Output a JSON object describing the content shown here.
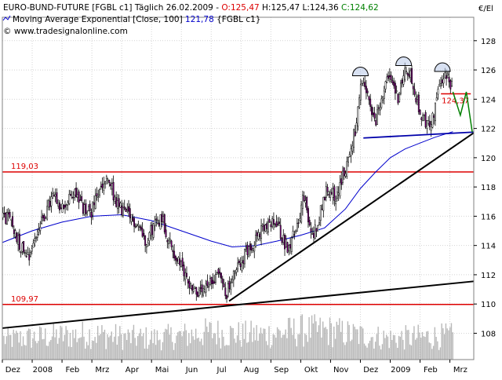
{
  "header": {
    "title_line": {
      "prefix": "EURO-BUND-FUTURE [FGBL c1]  Täglich 26.02.2009 - ",
      "o_label": "O:125,47",
      "h_label": " H:125,47",
      "l_label": " L:124,36",
      "c_label": " C:124,62"
    },
    "ma_line": {
      "prefix": "Moving Average Exponential [Close, 100] ",
      "value": "121,78",
      "suffix": " {FGBL c1}"
    },
    "copyright": "© www.tradesignalonline.com"
  },
  "chart_data": {
    "type": "candlestick",
    "y_axis_unit": "€/El",
    "ylim": [
      106.2,
      129.6
    ],
    "y_ticks": [
      {
        "value": 108,
        "label": "108"
      },
      {
        "value": 110,
        "label": "110"
      },
      {
        "value": 112,
        "label": "112"
      },
      {
        "value": 114,
        "label": "114"
      },
      {
        "value": 116,
        "label": "116"
      },
      {
        "value": 118,
        "label": "118"
      },
      {
        "value": 120,
        "label": "120"
      },
      {
        "value": 122,
        "label": "122"
      },
      {
        "value": 124,
        "label": "124"
      },
      {
        "value": 126,
        "label": "126"
      },
      {
        "value": 128,
        "label": "128"
      }
    ],
    "x_ticks": [
      {
        "pos": 0.35,
        "label": "Dez"
      },
      {
        "pos": 1.35,
        "label": "2008"
      },
      {
        "pos": 2.35,
        "label": "Feb"
      },
      {
        "pos": 3.35,
        "label": "Mrz"
      },
      {
        "pos": 4.35,
        "label": "Apr"
      },
      {
        "pos": 5.35,
        "label": "Mai"
      },
      {
        "pos": 6.35,
        "label": "Jun"
      },
      {
        "pos": 7.35,
        "label": "Jul"
      },
      {
        "pos": 8.35,
        "label": "Aug"
      },
      {
        "pos": 9.35,
        "label": "Sep"
      },
      {
        "pos": 10.35,
        "label": "Okt"
      },
      {
        "pos": 11.35,
        "label": "Nov"
      },
      {
        "pos": 12.35,
        "label": "Dez"
      },
      {
        "pos": 13.35,
        "label": "2009"
      },
      {
        "pos": 14.35,
        "label": "Feb"
      },
      {
        "pos": 15.35,
        "label": "Mrz"
      }
    ],
    "x_range": [
      0,
      15.8
    ],
    "colors": {
      "up": "#ffffff",
      "down": "#800080",
      "wick": "#000000",
      "ma": "#0000cc",
      "hline": "#dd0000",
      "trend": "#000000",
      "neckline": "#0000aa",
      "projection": "#008000",
      "target": "#dd0000",
      "volume": "#b8b8b8",
      "grid": "#d4d4d4",
      "axis": "#808080"
    },
    "horizontal_lines": [
      {
        "value": 119.03,
        "label": "119,03"
      },
      {
        "value": 109.97,
        "label": "109,97"
      }
    ],
    "target_line": {
      "value": 124.37,
      "label": "124,37",
      "x0": 14.7,
      "x1": 15.7
    },
    "trendlines": [
      {
        "name": "long-support",
        "x0": 0,
        "y0": 108.35,
        "x1": 15.8,
        "y1": 111.55,
        "color": "trend"
      },
      {
        "name": "rally-support",
        "x0": 7.6,
        "y0": 110.2,
        "x1": 15.8,
        "y1": 121.7,
        "color": "trend"
      }
    ],
    "neckline": {
      "x0": 12.1,
      "y0": 121.35,
      "x1": 15.8,
      "y1": 121.75
    },
    "shoulder_arcs": [
      {
        "x": 12.0,
        "y": 125.6,
        "name": "left-shoulder"
      },
      {
        "x": 13.45,
        "y": 126.3,
        "name": "head"
      },
      {
        "x": 14.75,
        "y": 125.9,
        "name": "right-shoulder"
      }
    ],
    "projection_path": [
      [
        15.1,
        124.5
      ],
      [
        15.35,
        122.9
      ],
      [
        15.55,
        124.5
      ],
      [
        15.75,
        121.75
      ]
    ],
    "close_anchors": [
      [
        0.0,
        116.1
      ],
      [
        0.3,
        115.6
      ],
      [
        0.6,
        114.0
      ],
      [
        0.9,
        113.4
      ],
      [
        1.15,
        114.8
      ],
      [
        1.45,
        116.2
      ],
      [
        1.7,
        117.4
      ],
      [
        1.95,
        116.4
      ],
      [
        2.2,
        117.0
      ],
      [
        2.45,
        117.8
      ],
      [
        2.7,
        116.5
      ],
      [
        2.95,
        116.2
      ],
      [
        3.2,
        117.4
      ],
      [
        3.45,
        118.4
      ],
      [
        3.65,
        118.1
      ],
      [
        3.8,
        116.8
      ],
      [
        4.05,
        116.4
      ],
      [
        4.3,
        115.8
      ],
      [
        4.55,
        115.5
      ],
      [
        4.8,
        114.3
      ],
      [
        5.0,
        115.1
      ],
      [
        5.2,
        115.7
      ],
      [
        5.35,
        116.0
      ],
      [
        5.5,
        114.8
      ],
      [
        5.75,
        113.4
      ],
      [
        6.0,
        112.5
      ],
      [
        6.25,
        111.5
      ],
      [
        6.45,
        111.0
      ],
      [
        6.6,
        110.6
      ],
      [
        6.85,
        111.0
      ],
      [
        7.05,
        111.6
      ],
      [
        7.25,
        112.4
      ],
      [
        7.35,
        111.4
      ],
      [
        7.5,
        110.7
      ],
      [
        7.7,
        111.6
      ],
      [
        7.95,
        112.8
      ],
      [
        8.2,
        113.6
      ],
      [
        8.45,
        114.4
      ],
      [
        8.7,
        115.0
      ],
      [
        8.95,
        115.3
      ],
      [
        9.2,
        115.6
      ],
      [
        9.4,
        114.4
      ],
      [
        9.55,
        113.9
      ],
      [
        9.75,
        114.6
      ],
      [
        9.95,
        116.0
      ],
      [
        10.1,
        117.4
      ],
      [
        10.25,
        115.6
      ],
      [
        10.4,
        114.6
      ],
      [
        10.6,
        115.8
      ],
      [
        10.8,
        117.5
      ],
      [
        11.0,
        118.0
      ],
      [
        11.15,
        117.2
      ],
      [
        11.35,
        118.3
      ],
      [
        11.5,
        119.2
      ],
      [
        11.7,
        120.8
      ],
      [
        11.85,
        122.1
      ],
      [
        12.0,
        124.5
      ],
      [
        12.1,
        124.9
      ],
      [
        12.25,
        124.2
      ],
      [
        12.35,
        123.1
      ],
      [
        12.5,
        122.3
      ],
      [
        12.6,
        123.1
      ],
      [
        12.75,
        124.6
      ],
      [
        12.95,
        125.3
      ],
      [
        13.1,
        125.0
      ],
      [
        13.25,
        124.1
      ],
      [
        13.45,
        125.6
      ],
      [
        13.6,
        125.9
      ],
      [
        13.75,
        125.2
      ],
      [
        13.9,
        123.8
      ],
      [
        14.05,
        122.8
      ],
      [
        14.2,
        122.4
      ],
      [
        14.35,
        122.0
      ],
      [
        14.55,
        123.9
      ],
      [
        14.7,
        125.3
      ],
      [
        14.85,
        125.7
      ],
      [
        14.95,
        125.47
      ],
      [
        15.1,
        124.62
      ]
    ],
    "ma_points": [
      [
        0.0,
        114.2
      ],
      [
        1.0,
        115.0
      ],
      [
        2.0,
        115.6
      ],
      [
        3.0,
        116.0
      ],
      [
        4.0,
        116.1
      ],
      [
        5.0,
        115.7
      ],
      [
        6.0,
        115.0
      ],
      [
        7.0,
        114.3
      ],
      [
        7.7,
        113.9
      ],
      [
        8.5,
        114.0
      ],
      [
        9.2,
        114.3
      ],
      [
        10.0,
        114.7
      ],
      [
        10.8,
        115.2
      ],
      [
        11.5,
        116.5
      ],
      [
        12.0,
        117.9
      ],
      [
        12.5,
        119.0
      ],
      [
        13.0,
        120.0
      ],
      [
        13.5,
        120.6
      ],
      [
        14.0,
        121.0
      ],
      [
        14.5,
        121.4
      ],
      [
        15.1,
        121.78
      ]
    ],
    "volume_scale_max": 130,
    "volume_profile": [
      [
        0,
        55
      ],
      [
        1,
        60
      ],
      [
        2,
        65
      ],
      [
        3,
        70
      ],
      [
        4,
        62
      ],
      [
        5,
        58
      ],
      [
        6,
        65
      ],
      [
        7,
        75
      ],
      [
        8,
        68
      ],
      [
        9,
        70
      ],
      [
        10,
        80
      ],
      [
        11,
        78
      ],
      [
        12,
        66
      ],
      [
        13,
        58
      ],
      [
        14,
        62
      ],
      [
        15,
        64
      ]
    ],
    "candles_per_month": 21.6
  }
}
